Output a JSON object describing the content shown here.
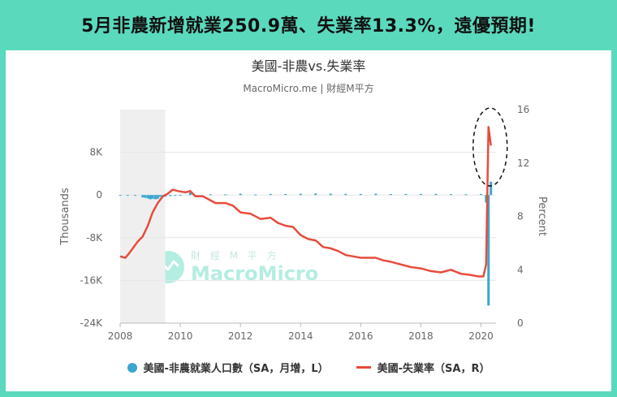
{
  "banner": {
    "headline": "5月非農新增就業250.9萬、失業率13.3%，遠優預期!"
  },
  "chart": {
    "title": "美國-非農vs.失業率",
    "subtitle": "MacroMicro.me | 財經M平方",
    "legend": [
      {
        "label": "美國-非農就業人口數（SA，月增，L）",
        "color": "#3aa7cf"
      },
      {
        "label": "美國-失業率（SA，R）",
        "color": "#e74c3c"
      }
    ]
  },
  "watermark": {
    "brand": "MacroMicro",
    "sub": "財 經 M 平 方"
  },
  "colors": {
    "bar": "#3aa7cf",
    "line": "#e74c3c",
    "recession": "#efefef",
    "banner": "#5ad9bd",
    "annotation": "#111111"
  },
  "chart_data": {
    "type": "bar+line",
    "x_range": [
      2008,
      2020.5
    ],
    "x_ticks": [
      "2008",
      "2010",
      "2012",
      "2014",
      "2016",
      "2018",
      "2020"
    ],
    "left_axis": {
      "title": "Thousands",
      "range": [
        -24000,
        16000
      ],
      "ticks": [
        "8K",
        "0",
        "-8K",
        "-16K",
        "-24K"
      ]
    },
    "right_axis": {
      "title": "Percent",
      "range": [
        0,
        16
      ],
      "ticks": [
        "16",
        "12",
        "8",
        "4",
        "0"
      ]
    },
    "shaded_period": [
      2008.0,
      2009.5
    ],
    "annotation": "dashed ellipse highlighting 2020 spike",
    "series": [
      {
        "name": "美國-非農就業人口數（SA，月增，L）",
        "axis": "left",
        "type": "bar",
        "points": [
          [
            2008.0,
            -10
          ],
          [
            2008.25,
            -80
          ],
          [
            2008.5,
            -150
          ],
          [
            2008.75,
            -450
          ],
          [
            2008.83,
            -520
          ],
          [
            2008.92,
            -650
          ],
          [
            2009.0,
            -800
          ],
          [
            2009.08,
            -700
          ],
          [
            2009.17,
            -800
          ],
          [
            2009.25,
            -700
          ],
          [
            2009.33,
            -350
          ],
          [
            2009.42,
            -460
          ],
          [
            2009.5,
            -300
          ],
          [
            2009.67,
            -210
          ],
          [
            2009.83,
            -100
          ],
          [
            2010.0,
            20
          ],
          [
            2010.33,
            500
          ],
          [
            2010.5,
            -100
          ],
          [
            2011.0,
            150
          ],
          [
            2011.5,
            120
          ],
          [
            2012.0,
            250
          ],
          [
            2012.5,
            100
          ],
          [
            2013.0,
            200
          ],
          [
            2013.5,
            180
          ],
          [
            2014.0,
            250
          ],
          [
            2014.5,
            300
          ],
          [
            2015.0,
            260
          ],
          [
            2015.5,
            220
          ],
          [
            2016.0,
            200
          ],
          [
            2016.5,
            250
          ],
          [
            2017.0,
            180
          ],
          [
            2017.5,
            200
          ],
          [
            2018.0,
            200
          ],
          [
            2018.5,
            220
          ],
          [
            2019.0,
            170
          ],
          [
            2019.5,
            150
          ],
          [
            2020.0,
            200
          ],
          [
            2020.17,
            -1400
          ],
          [
            2020.25,
            -20700
          ],
          [
            2020.33,
            2500
          ]
        ]
      },
      {
        "name": "美國-失業率（SA，R）",
        "axis": "right",
        "type": "line",
        "points": [
          [
            2008.0,
            5.0
          ],
          [
            2008.17,
            4.9
          ],
          [
            2008.25,
            5.1
          ],
          [
            2008.42,
            5.6
          ],
          [
            2008.58,
            6.1
          ],
          [
            2008.75,
            6.5
          ],
          [
            2008.92,
            7.3
          ],
          [
            2009.08,
            8.3
          ],
          [
            2009.25,
            9.0
          ],
          [
            2009.42,
            9.5
          ],
          [
            2009.58,
            9.7
          ],
          [
            2009.75,
            10.0
          ],
          [
            2009.92,
            9.9
          ],
          [
            2010.17,
            9.8
          ],
          [
            2010.33,
            9.9
          ],
          [
            2010.5,
            9.5
          ],
          [
            2010.75,
            9.5
          ],
          [
            2010.92,
            9.3
          ],
          [
            2011.17,
            9.0
          ],
          [
            2011.5,
            9.0
          ],
          [
            2011.75,
            8.8
          ],
          [
            2012.0,
            8.3
          ],
          [
            2012.33,
            8.2
          ],
          [
            2012.67,
            7.8
          ],
          [
            2013.0,
            7.9
          ],
          [
            2013.25,
            7.5
          ],
          [
            2013.5,
            7.3
          ],
          [
            2013.75,
            7.2
          ],
          [
            2014.0,
            6.6
          ],
          [
            2014.25,
            6.3
          ],
          [
            2014.5,
            6.2
          ],
          [
            2014.75,
            5.7
          ],
          [
            2015.0,
            5.6
          ],
          [
            2015.25,
            5.4
          ],
          [
            2015.5,
            5.1
          ],
          [
            2015.75,
            5.0
          ],
          [
            2016.0,
            4.9
          ],
          [
            2016.25,
            4.9
          ],
          [
            2016.5,
            4.9
          ],
          [
            2016.75,
            4.7
          ],
          [
            2017.0,
            4.6
          ],
          [
            2017.33,
            4.4
          ],
          [
            2017.67,
            4.2
          ],
          [
            2018.0,
            4.1
          ],
          [
            2018.33,
            3.9
          ],
          [
            2018.67,
            3.8
          ],
          [
            2019.0,
            4.0
          ],
          [
            2019.33,
            3.7
          ],
          [
            2019.67,
            3.6
          ],
          [
            2019.92,
            3.5
          ],
          [
            2020.08,
            3.5
          ],
          [
            2020.17,
            4.4
          ],
          [
            2020.25,
            14.7
          ],
          [
            2020.33,
            13.3
          ]
        ]
      }
    ]
  }
}
